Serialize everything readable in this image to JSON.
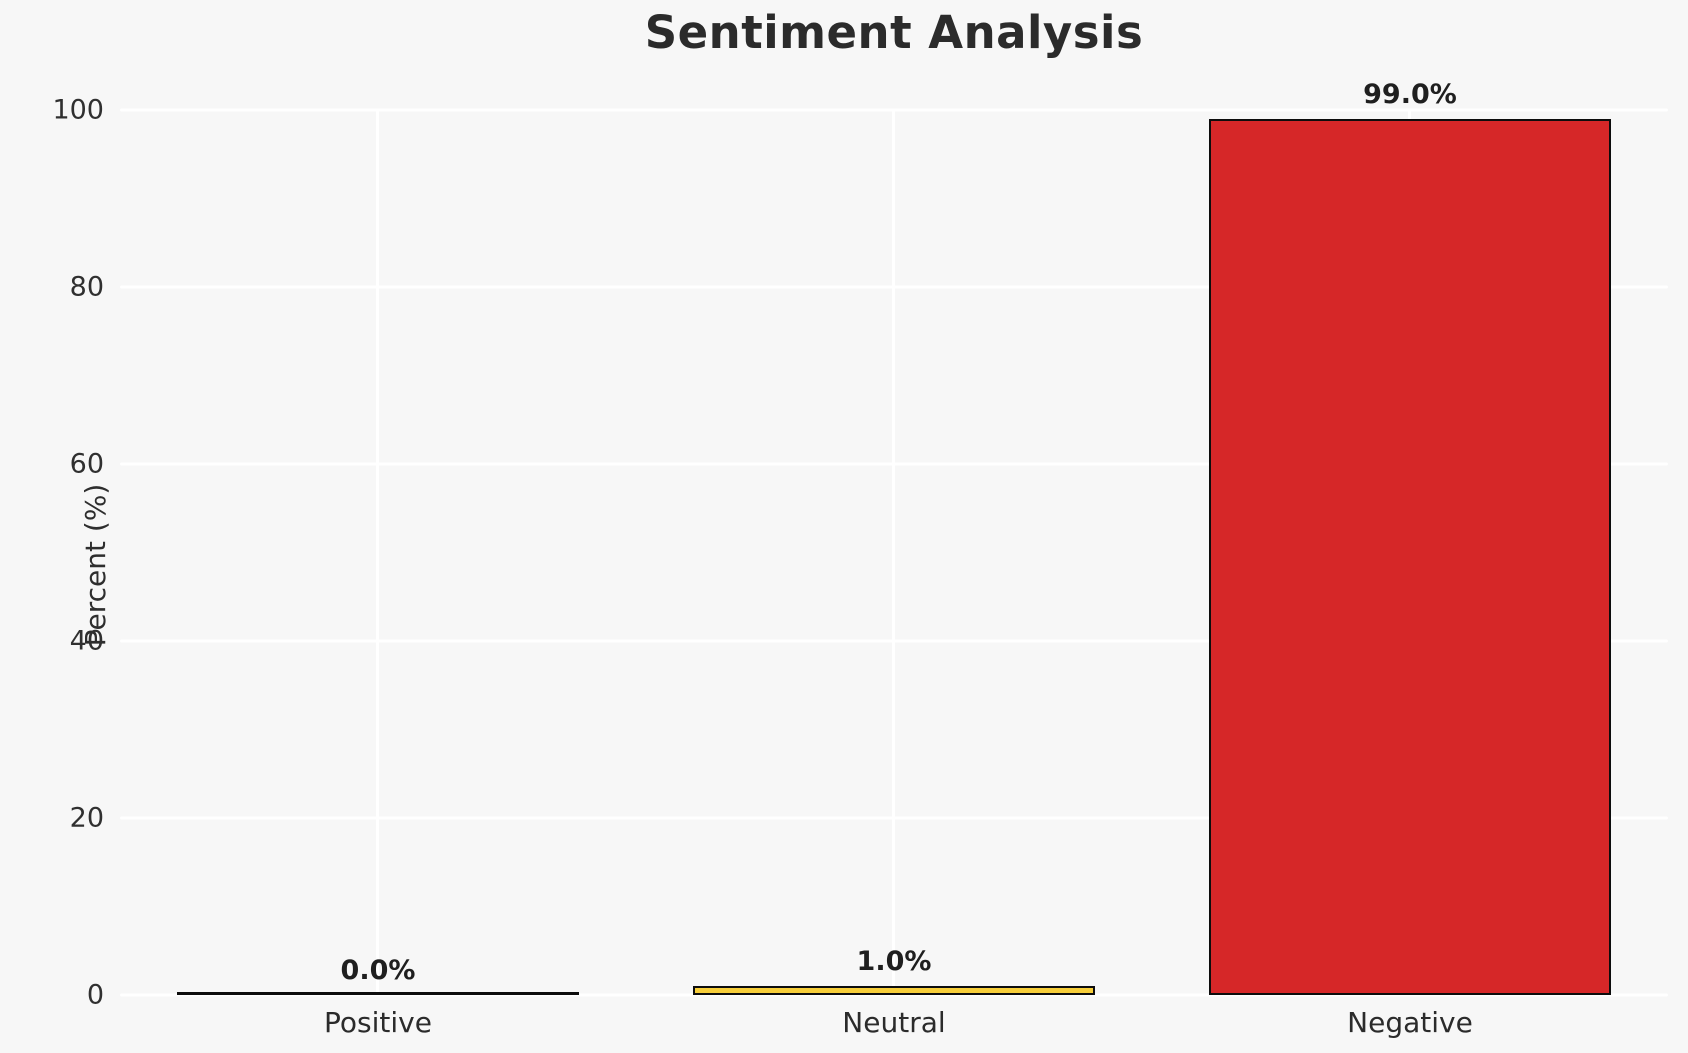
{
  "chart_data": {
    "type": "bar",
    "title": "Sentiment Analysis",
    "ylabel": "Percent (%)",
    "xlabel": "",
    "categories": [
      "Positive",
      "Neutral",
      "Negative"
    ],
    "values": [
      0.0,
      1.0,
      99.0
    ],
    "value_labels": [
      "0.0%",
      "1.0%",
      "99.0%"
    ],
    "colors": [
      "transparent",
      "#f7ce3a",
      "#d62728"
    ],
    "bar_edge_color": "#0d0d0d",
    "ylim": [
      0,
      100
    ],
    "yticks": [
      0,
      20,
      40,
      60,
      80,
      100
    ],
    "grid": true,
    "gridline_color": "#ffffff",
    "figure_background": "#f7f7f7",
    "legend_position": "none"
  }
}
